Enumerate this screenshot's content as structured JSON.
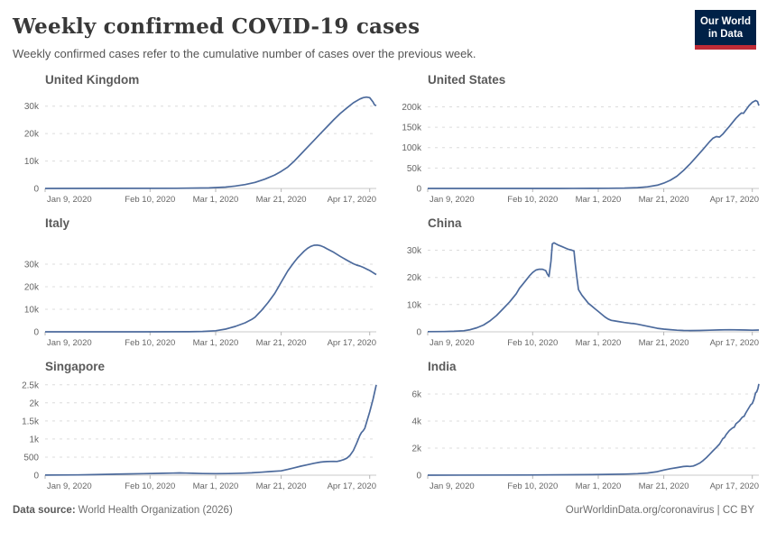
{
  "header": {
    "title": "Weekly confirmed COVID-19 cases",
    "subtitle": "Weekly confirmed cases refer to the cumulative number of cases over the previous week.",
    "logo_line1": "Our World",
    "logo_line2": "in Data"
  },
  "footer": {
    "source_label": "Data source:",
    "source_text": "World Health Organization (2026)",
    "link_text": "OurWorldinData.org/coronavirus | CC BY"
  },
  "style": {
    "line_color": "#4C6A9C",
    "grid_color": "#dcdcdc",
    "axis_color": "#c8c8c8",
    "tick_mark_color": "#b5b5b5",
    "logo_bg": "#002147",
    "logo_red": "#bf2b36"
  },
  "chart_data": {
    "type": "line",
    "x_axis": {
      "unit": "days since Jan 9, 2020",
      "max": 101,
      "ticks": [
        [
          0,
          "Jan 9, 2020"
        ],
        [
          32,
          "Feb 10, 2020"
        ],
        [
          52,
          "Mar 1, 2020"
        ],
        [
          72,
          "Mar 21, 2020"
        ],
        [
          99,
          "Apr 17, 2020"
        ]
      ]
    },
    "charts": [
      {
        "title": "United Kingdom",
        "ymax": 34500,
        "yticks": [
          [
            0,
            "0"
          ],
          [
            10000,
            "10k"
          ],
          [
            20000,
            "20k"
          ],
          [
            30000,
            "30k"
          ]
        ],
        "points": [
          [
            0,
            0
          ],
          [
            20,
            20
          ],
          [
            40,
            60
          ],
          [
            50,
            200
          ],
          [
            55,
            500
          ],
          [
            58,
            900
          ],
          [
            61,
            1400
          ],
          [
            64,
            2200
          ],
          [
            67,
            3400
          ],
          [
            70,
            4900
          ],
          [
            72,
            6200
          ],
          [
            74,
            7800
          ],
          [
            76,
            10000
          ],
          [
            78,
            12500
          ],
          [
            80,
            15000
          ],
          [
            82,
            17500
          ],
          [
            84,
            20000
          ],
          [
            86,
            22500
          ],
          [
            88,
            25000
          ],
          [
            90,
            27300
          ],
          [
            92,
            29300
          ],
          [
            94,
            31200
          ],
          [
            96,
            32600
          ],
          [
            97,
            33100
          ],
          [
            98,
            33300
          ],
          [
            99,
            33100
          ],
          [
            100,
            31500
          ],
          [
            100.5,
            30400
          ],
          [
            101,
            30200
          ]
        ]
      },
      {
        "title": "United States",
        "ymax": 232000,
        "yticks": [
          [
            0,
            "0"
          ],
          [
            50000,
            "50k"
          ],
          [
            100000,
            "100k"
          ],
          [
            150000,
            "150k"
          ],
          [
            200000,
            "200k"
          ]
        ],
        "points": [
          [
            0,
            0
          ],
          [
            20,
            50
          ],
          [
            40,
            100
          ],
          [
            50,
            300
          ],
          [
            55,
            400
          ],
          [
            60,
            900
          ],
          [
            64,
            2000
          ],
          [
            67,
            4000
          ],
          [
            70,
            8000
          ],
          [
            72,
            13000
          ],
          [
            74,
            20000
          ],
          [
            76,
            30000
          ],
          [
            78,
            44000
          ],
          [
            80,
            60000
          ],
          [
            82,
            78000
          ],
          [
            84,
            96000
          ],
          [
            86,
            115000
          ],
          [
            87,
            123000
          ],
          [
            88,
            127000
          ],
          [
            89,
            126000
          ],
          [
            90,
            133000
          ],
          [
            91,
            143000
          ],
          [
            92,
            152000
          ],
          [
            93,
            162000
          ],
          [
            94,
            172000
          ],
          [
            95,
            180000
          ],
          [
            95.7,
            185000
          ],
          [
            96.3,
            184000
          ],
          [
            97,
            192000
          ],
          [
            98,
            203000
          ],
          [
            99,
            211000
          ],
          [
            100,
            215500
          ],
          [
            100.6,
            213000
          ],
          [
            101,
            203000
          ]
        ]
      },
      {
        "title": "Italy",
        "ymax": 42000,
        "yticks": [
          [
            0,
            "0"
          ],
          [
            10000,
            "10k"
          ],
          [
            20000,
            "20k"
          ],
          [
            30000,
            "30k"
          ]
        ],
        "points": [
          [
            0,
            0
          ],
          [
            30,
            20
          ],
          [
            44,
            50
          ],
          [
            48,
            150
          ],
          [
            52,
            500
          ],
          [
            55,
            1200
          ],
          [
            58,
            2400
          ],
          [
            61,
            4000
          ],
          [
            63,
            5500
          ],
          [
            64,
            6500
          ],
          [
            65,
            8000
          ],
          [
            66,
            9500
          ],
          [
            68,
            13000
          ],
          [
            70,
            17000
          ],
          [
            71,
            19500
          ],
          [
            72,
            22000
          ],
          [
            73,
            24500
          ],
          [
            74,
            27000
          ],
          [
            75,
            29000
          ],
          [
            76,
            31000
          ],
          [
            77,
            32800
          ],
          [
            78,
            34300
          ],
          [
            79,
            35800
          ],
          [
            80,
            37000
          ],
          [
            81,
            37900
          ],
          [
            82,
            38400
          ],
          [
            83,
            38500
          ],
          [
            84,
            38200
          ],
          [
            85,
            37600
          ],
          [
            86,
            36800
          ],
          [
            88,
            35300
          ],
          [
            90,
            33500
          ],
          [
            92,
            31800
          ],
          [
            93,
            31000
          ],
          [
            94,
            30200
          ],
          [
            95,
            29600
          ],
          [
            96,
            29200
          ],
          [
            97,
            28600
          ],
          [
            98,
            27900
          ],
          [
            99,
            27200
          ],
          [
            100,
            26300
          ],
          [
            100.5,
            25800
          ],
          [
            101,
            25400
          ]
        ]
      },
      {
        "title": "China",
        "ymax": 34800,
        "yticks": [
          [
            0,
            "0"
          ],
          [
            10000,
            "10k"
          ],
          [
            20000,
            "20k"
          ],
          [
            30000,
            "30k"
          ]
        ],
        "points": [
          [
            0,
            50
          ],
          [
            5,
            100
          ],
          [
            8,
            200
          ],
          [
            11,
            400
          ],
          [
            13,
            800
          ],
          [
            15,
            1500
          ],
          [
            17,
            2500
          ],
          [
            19,
            4000
          ],
          [
            21,
            6000
          ],
          [
            23,
            8500
          ],
          [
            25,
            11000
          ],
          [
            27,
            14000
          ],
          [
            28,
            16000
          ],
          [
            29,
            17500
          ],
          [
            30,
            19000
          ],
          [
            31,
            20500
          ],
          [
            32,
            21800
          ],
          [
            33,
            22700
          ],
          [
            34,
            23000
          ],
          [
            35,
            23000
          ],
          [
            36,
            22500
          ],
          [
            36.5,
            21200
          ],
          [
            37,
            20300
          ],
          [
            37.6,
            26000
          ],
          [
            38,
            32300
          ],
          [
            38.5,
            32700
          ],
          [
            39,
            32400
          ],
          [
            40,
            31800
          ],
          [
            41,
            31300
          ],
          [
            42,
            30800
          ],
          [
            43,
            30300
          ],
          [
            44,
            30000
          ],
          [
            44.6,
            29700
          ],
          [
            45,
            25000
          ],
          [
            45.5,
            20000
          ],
          [
            46,
            15500
          ],
          [
            47,
            13500
          ],
          [
            48,
            12000
          ],
          [
            49,
            10500
          ],
          [
            50,
            9500
          ],
          [
            51,
            8500
          ],
          [
            52,
            7500
          ],
          [
            53,
            6500
          ],
          [
            54,
            5500
          ],
          [
            55,
            4700
          ],
          [
            56,
            4200
          ],
          [
            57,
            4000
          ],
          [
            58,
            3800
          ],
          [
            60,
            3400
          ],
          [
            62,
            3100
          ],
          [
            63,
            3000
          ],
          [
            64,
            2800
          ],
          [
            66,
            2300
          ],
          [
            68,
            1800
          ],
          [
            70,
            1300
          ],
          [
            72,
            1000
          ],
          [
            74,
            800
          ],
          [
            76,
            600
          ],
          [
            78,
            500
          ],
          [
            80,
            450
          ],
          [
            83,
            500
          ],
          [
            86,
            600
          ],
          [
            89,
            700
          ],
          [
            92,
            750
          ],
          [
            95,
            700
          ],
          [
            97,
            650
          ],
          [
            99,
            600
          ],
          [
            101,
            650
          ]
        ]
      },
      {
        "title": "Singapore",
        "ymax": 2620,
        "yticks": [
          [
            0,
            "0"
          ],
          [
            500,
            "500"
          ],
          [
            1000,
            "1k"
          ],
          [
            1500,
            "1.5k"
          ],
          [
            2000,
            "2k"
          ],
          [
            2500,
            "2.5k"
          ]
        ],
        "points": [
          [
            0,
            2
          ],
          [
            10,
            8
          ],
          [
            15,
            15
          ],
          [
            20,
            25
          ],
          [
            25,
            35
          ],
          [
            30,
            42
          ],
          [
            33,
            48
          ],
          [
            36,
            52
          ],
          [
            39,
            58
          ],
          [
            41,
            62
          ],
          [
            43,
            58
          ],
          [
            45,
            52
          ],
          [
            48,
            46
          ],
          [
            52,
            42
          ],
          [
            56,
            46
          ],
          [
            60,
            55
          ],
          [
            63,
            65
          ],
          [
            66,
            82
          ],
          [
            69,
            102
          ],
          [
            72,
            120
          ],
          [
            74,
            160
          ],
          [
            76,
            205
          ],
          [
            78,
            250
          ],
          [
            80,
            290
          ],
          [
            82,
            330
          ],
          [
            84,
            362
          ],
          [
            85,
            372
          ],
          [
            86,
            378
          ],
          [
            88,
            383
          ],
          [
            89,
            380
          ],
          [
            90,
            398
          ],
          [
            91,
            430
          ],
          [
            92,
            470
          ],
          [
            93,
            550
          ],
          [
            94,
            680
          ],
          [
            95,
            880
          ],
          [
            96,
            1100
          ],
          [
            96.5,
            1180
          ],
          [
            97,
            1230
          ],
          [
            97.5,
            1300
          ],
          [
            98,
            1450
          ],
          [
            99,
            1750
          ],
          [
            100,
            2100
          ],
          [
            101,
            2500
          ]
        ]
      },
      {
        "title": "India",
        "ymax": 7000,
        "yticks": [
          [
            0,
            "0"
          ],
          [
            2000,
            "2k"
          ],
          [
            4000,
            "4k"
          ],
          [
            6000,
            "6k"
          ]
        ],
        "points": [
          [
            0,
            0
          ],
          [
            30,
            10
          ],
          [
            50,
            40
          ],
          [
            55,
            60
          ],
          [
            60,
            80
          ],
          [
            64,
            110
          ],
          [
            67,
            160
          ],
          [
            70,
            260
          ],
          [
            72,
            380
          ],
          [
            74,
            480
          ],
          [
            76,
            560
          ],
          [
            78,
            640
          ],
          [
            79,
            660
          ],
          [
            80,
            650
          ],
          [
            81,
            680
          ],
          [
            82,
            780
          ],
          [
            83,
            900
          ],
          [
            84,
            1080
          ],
          [
            85,
            1300
          ],
          [
            86,
            1550
          ],
          [
            87,
            1800
          ],
          [
            88,
            2050
          ],
          [
            89,
            2300
          ],
          [
            90,
            2700
          ],
          [
            90.5,
            2780
          ],
          [
            91,
            3000
          ],
          [
            92,
            3300
          ],
          [
            93,
            3500
          ],
          [
            93.5,
            3550
          ],
          [
            94,
            3800
          ],
          [
            95,
            4000
          ],
          [
            96,
            4300
          ],
          [
            96.5,
            4350
          ],
          [
            97,
            4600
          ],
          [
            98,
            5000
          ],
          [
            98.5,
            5200
          ],
          [
            99,
            5300
          ],
          [
            99.5,
            5600
          ],
          [
            100,
            6100
          ],
          [
            100.3,
            6150
          ],
          [
            100.7,
            6400
          ],
          [
            101,
            6750
          ]
        ]
      }
    ]
  }
}
